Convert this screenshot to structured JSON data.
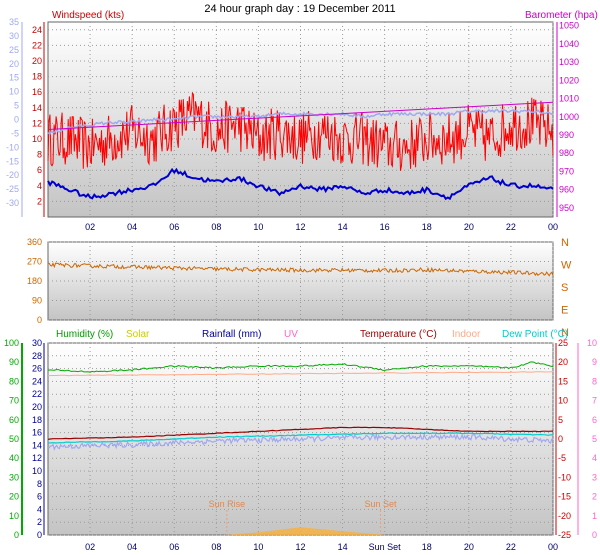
{
  "chart_data": [
    {
      "type": "line",
      "title": "24 hour graph day : 19 December 2011",
      "ylabel_left": "Windspeed (kts)",
      "ylabel_right": "Barometer (hpa)",
      "x_ticks": [
        "02",
        "04",
        "06",
        "08",
        "10",
        "12",
        "14",
        "16",
        "18",
        "20",
        "22",
        "00"
      ],
      "ylim_wind": [
        0,
        25
      ],
      "wind_ticks": [
        "2",
        "4",
        "6",
        "8",
        "10",
        "12",
        "14",
        "16",
        "18",
        "20",
        "22",
        "24"
      ],
      "ylim_outer": [
        -35,
        35
      ],
      "outer_ticks": [
        "-30",
        "-25",
        "-20",
        "-15",
        "-10",
        "-5",
        "0",
        "5",
        "10",
        "15",
        "20",
        "25",
        "30",
        "35"
      ],
      "ylim_baro": [
        945,
        1052
      ],
      "baro_ticks": [
        "950",
        "960",
        "970",
        "980",
        "990",
        "1000",
        "1010",
        "1020",
        "1030",
        "1040",
        "1050"
      ],
      "grid": true,
      "series": [
        {
          "name": "windspeed_gust",
          "color": "#ff0000",
          "x": [
            0,
            1,
            2,
            3,
            4,
            5,
            6,
            7,
            8,
            9,
            10,
            11,
            12,
            13,
            14,
            15,
            16,
            17,
            18,
            19,
            20,
            21,
            22,
            23,
            24
          ],
          "values": [
            10,
            10,
            9,
            10,
            11,
            10,
            12,
            13,
            11,
            12,
            10,
            11,
            10,
            11,
            10,
            10,
            9,
            9,
            10,
            10,
            11,
            10,
            12,
            12,
            11
          ]
        },
        {
          "name": "windspeed_avg",
          "color": "#0000cc",
          "x": [
            0,
            1,
            2,
            3,
            4,
            5,
            6,
            7,
            8,
            9,
            10,
            11,
            12,
            13,
            14,
            15,
            16,
            17,
            18,
            19,
            20,
            21,
            22,
            23,
            24
          ],
          "values": [
            4.5,
            3.5,
            2.5,
            3,
            3.5,
            4,
            6,
            5,
            4.5,
            5,
            4,
            3,
            4,
            3.5,
            4,
            3,
            3.5,
            3,
            3.5,
            2.5,
            4,
            5,
            4,
            4,
            3.5
          ]
        },
        {
          "name": "outer_scale_trace",
          "color": "#a0a8f0",
          "x": [
            0,
            1,
            2,
            3,
            4,
            5,
            6,
            7,
            8,
            9,
            10,
            11,
            12,
            13,
            14,
            15,
            16,
            17,
            18,
            19,
            20,
            21,
            22,
            23,
            24
          ],
          "values": [
            -5,
            -3,
            -2,
            -1,
            -1,
            0,
            0,
            1,
            1,
            1,
            1,
            2,
            2,
            2,
            2,
            1,
            2,
            2,
            2,
            2,
            3,
            3,
            3,
            3,
            2
          ]
        },
        {
          "name": "barometer",
          "color": "#cc00cc",
          "x": [
            0,
            24
          ],
          "values": [
            993,
            1008
          ]
        }
      ]
    },
    {
      "type": "scatter",
      "ylabel_right": [
        "N",
        "W",
        "S",
        "E",
        "N"
      ],
      "ylim": [
        0,
        360
      ],
      "y_ticks": [
        "0",
        "90",
        "180",
        "270",
        "360"
      ],
      "grid": true,
      "series": [
        {
          "name": "wind_direction",
          "color": "#cc6600",
          "x": [
            0,
            2,
            4,
            6,
            8,
            10,
            12,
            14,
            16,
            18,
            20,
            22,
            24
          ],
          "values": [
            255,
            250,
            245,
            240,
            235,
            232,
            230,
            230,
            228,
            232,
            225,
            220,
            212
          ]
        }
      ]
    },
    {
      "type": "line",
      "legend": [
        "Humidity (%)",
        "Solar",
        "Rainfall (mm)",
        "UV",
        "Temperature (°C)",
        "Indoor",
        "Dew Point (°C)"
      ],
      "legend_colors": [
        "#009900",
        "#cccc00",
        "#000099",
        "#ff66cc",
        "#990000",
        "#ffaa88",
        "#00cccc"
      ],
      "ylim_humidity": [
        0,
        100
      ],
      "humidity_ticks": [
        "0",
        "10",
        "20",
        "30",
        "40",
        "50",
        "60",
        "70",
        "80",
        "90",
        "100"
      ],
      "ylim_rain": [
        0,
        30
      ],
      "rain_ticks": [
        "0",
        "2",
        "4",
        "6",
        "8",
        "10",
        "12",
        "14",
        "16",
        "18",
        "20",
        "22",
        "24",
        "26",
        "28",
        "30"
      ],
      "ylim_temp": [
        -25,
        25
      ],
      "temp_ticks": [
        "-25",
        "-20",
        "-15",
        "-10",
        "-5",
        "0",
        "5",
        "10",
        "15",
        "20",
        "25"
      ],
      "ylim_uv": [
        0,
        10
      ],
      "uv_ticks": [
        "0",
        "1",
        "2",
        "3",
        "4",
        "5",
        "6",
        "7",
        "8",
        "9",
        "10"
      ],
      "annotations": [
        "Sun Rise",
        "Sun Set"
      ],
      "sun_set_tick_label": "Sun Set",
      "grid": true,
      "series": [
        {
          "name": "humidity",
          "color": "#00aa00",
          "x": [
            0,
            2,
            4,
            6,
            8,
            10,
            12,
            14,
            16,
            18,
            20,
            22,
            23,
            24
          ],
          "values": [
            86,
            85,
            86,
            88,
            87,
            88,
            88,
            89,
            86,
            88,
            88,
            87,
            90,
            88
          ]
        },
        {
          "name": "indoor",
          "color": "#ffaa88",
          "x": [
            0,
            24
          ],
          "values": [
            16.5,
            17.5
          ]
        },
        {
          "name": "temperature",
          "color": "#990000",
          "x": [
            0,
            4,
            8,
            12,
            14,
            16,
            20,
            24
          ],
          "values": [
            0,
            0.5,
            1.5,
            2.5,
            3.0,
            3.0,
            2.0,
            2.0
          ]
        },
        {
          "name": "dew_point",
          "color": "#00cccc",
          "x": [
            0,
            4,
            8,
            12,
            16,
            20,
            24
          ],
          "values": [
            -1.0,
            -0.5,
            0.5,
            1.0,
            1.5,
            1.5,
            1.0
          ]
        },
        {
          "name": "extra_pastel",
          "color": "#a0a8f0",
          "x": [
            0,
            4,
            8,
            12,
            16,
            20,
            24
          ],
          "values": [
            -2.0,
            -1.5,
            -0.5,
            0.0,
            0.5,
            0.5,
            -0.5
          ]
        },
        {
          "name": "solar",
          "color": "#f5b042",
          "x": [
            8.5,
            10,
            12,
            14,
            16
          ],
          "values": [
            0,
            0.4,
            1.2,
            0.6,
            0
          ]
        }
      ]
    }
  ]
}
